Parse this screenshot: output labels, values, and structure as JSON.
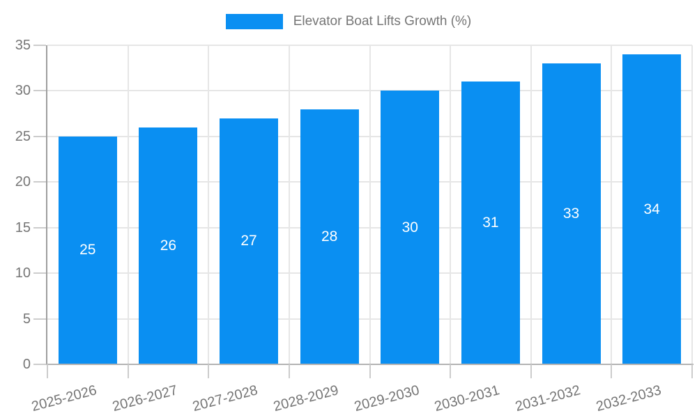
{
  "legend": {
    "label": "Elevator Boat Lifts Growth (%)"
  },
  "colors": {
    "bar": "#0a8ff2",
    "bar_label": "#ffffff",
    "axis_text": "#757575",
    "grid": "#e6e6e6",
    "axis_line": "#9e9e9e",
    "baseline": "#b3b3b3",
    "tick": "#cccccc",
    "background": "#ffffff"
  },
  "chart_data": {
    "type": "bar",
    "title": "Elevator Boat Lifts Growth (%)",
    "xlabel": "",
    "ylabel": "",
    "categories": [
      "2025-2026",
      "2026-2027",
      "2027-2028",
      "2028-2029",
      "2029-2030",
      "2030-2031",
      "2031-2032",
      "2032-2033"
    ],
    "series": [
      {
        "name": "Elevator Boat Lifts Growth (%)",
        "values": [
          25,
          26,
          27,
          28,
          30,
          31,
          33,
          34
        ]
      }
    ],
    "bar_value_labels": [
      "25",
      "26",
      "27",
      "28",
      "30",
      "31",
      "33",
      "34"
    ],
    "ylim": [
      0,
      35
    ],
    "yticks": [
      0,
      5,
      10,
      15,
      20,
      25,
      30,
      35
    ],
    "grid": true,
    "legend_position": "top-center",
    "x_label_rotation_deg": -15,
    "bar_labels_inside": true
  }
}
